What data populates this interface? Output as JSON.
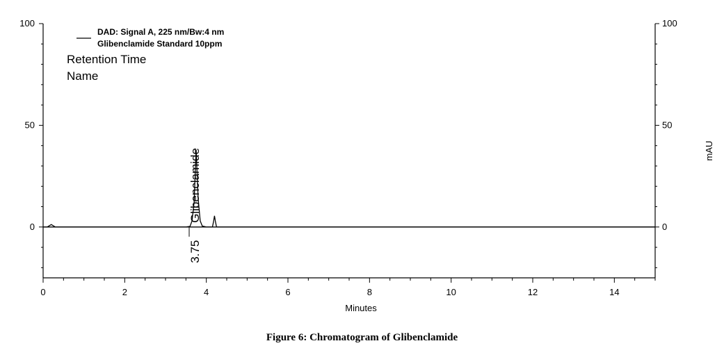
{
  "caption": "Figure 6: Chromatogram of Glibenclamide",
  "legend": {
    "line1": "DAD: Signal A, 225 nm/Bw:4 nm",
    "line2": "Glibenclamide Standard 10ppm"
  },
  "annotations": {
    "label1": "Retention Time",
    "label2": "Name"
  },
  "chart_data": {
    "type": "line",
    "xlabel": "Minutes",
    "ylabel": "mAU",
    "xlim": [
      0,
      15
    ],
    "ylim": [
      -25,
      100
    ],
    "x_ticks": [
      0,
      2,
      4,
      6,
      8,
      10,
      12,
      14
    ],
    "y_ticks_left": [
      0,
      50,
      100
    ],
    "y_ticks_right": [
      0,
      50,
      100
    ],
    "grid": false,
    "series": [
      {
        "x": [
          0.0,
          0.1,
          0.15,
          0.2,
          0.25,
          0.3,
          3.5,
          3.6,
          3.65,
          3.7,
          3.75,
          3.8,
          3.85,
          3.9,
          4.0,
          4.1,
          4.15,
          4.18,
          4.2,
          4.22,
          4.25,
          4.4,
          15.0
        ],
        "y": [
          0,
          0,
          0.6,
          1.2,
          0.6,
          0,
          0,
          0.3,
          3,
          12,
          38,
          14,
          3,
          0.5,
          0,
          0,
          0,
          3,
          5.5,
          3,
          0,
          0,
          0
        ]
      }
    ],
    "peaks": [
      {
        "retention_time": "3.75",
        "name": "Glibenclamide",
        "x": 3.75,
        "y": 38
      }
    ]
  }
}
